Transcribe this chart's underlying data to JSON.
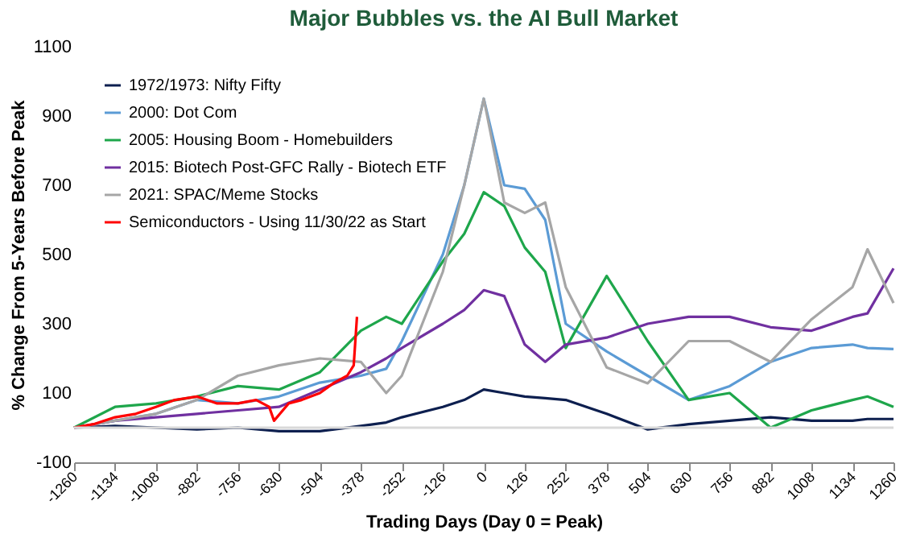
{
  "chart_data": {
    "type": "line",
    "title": "Major Bubbles vs. the AI Bull Market",
    "xlabel": "Trading Days (Day 0 = Peak)",
    "ylabel": "% Change From 5-Years Before Peak",
    "x": [
      -1260,
      -1134,
      -1008,
      -882,
      -756,
      -630,
      -504,
      -378,
      -300,
      -252,
      -126,
      -60,
      0,
      63,
      126,
      189,
      252,
      378,
      504,
      630,
      756,
      882,
      1008,
      1134,
      1180,
      1260
    ],
    "series": [
      {
        "name": "1972/1973: Nifty Fifty",
        "color": "#0d1f4f",
        "values": [
          0,
          5,
          0,
          -5,
          0,
          -10,
          -10,
          5,
          15,
          30,
          60,
          80,
          110,
          100,
          90,
          85,
          80,
          40,
          -5,
          10,
          20,
          30,
          20,
          20,
          25,
          25
        ]
      },
      {
        "name": "2000: Dot Com",
        "color": "#5b9bd5",
        "values": [
          0,
          20,
          40,
          80,
          70,
          90,
          130,
          150,
          170,
          250,
          500,
          700,
          950,
          700,
          690,
          600,
          300,
          220,
          150,
          80,
          120,
          190,
          230,
          240,
          230,
          227
        ]
      },
      {
        "name": "2005: Housing Boom - Homebuilders",
        "color": "#1ea64b",
        "values": [
          0,
          60,
          70,
          90,
          120,
          110,
          160,
          280,
          320,
          300,
          480,
          560,
          680,
          640,
          520,
          450,
          230,
          438,
          250,
          80,
          100,
          0,
          50,
          80,
          90,
          60
        ]
      },
      {
        "name": "2015: Biotech Post-GFC Rally - Biotech ETF",
        "color": "#7030a0",
        "values": [
          0,
          20,
          30,
          40,
          50,
          60,
          110,
          160,
          200,
          230,
          300,
          340,
          397,
          380,
          240,
          190,
          240,
          260,
          300,
          320,
          320,
          290,
          280,
          320,
          330,
          460
        ]
      },
      {
        "name": "2021: SPAC/Meme Stocks",
        "color": "#a6a6a6",
        "values": [
          0,
          20,
          40,
          80,
          150,
          180,
          200,
          190,
          100,
          150,
          450,
          700,
          950,
          650,
          620,
          650,
          406,
          174,
          128,
          250,
          250,
          190,
          313,
          406,
          515,
          360
        ]
      },
      {
        "name": "Semiconductors - Using 11/30/22 as Start",
        "color": "#ff0000",
        "x": [
          -1260,
          -1200,
          -1134,
          -1070,
          -1008,
          -950,
          -882,
          -820,
          -756,
          -700,
          -660,
          -645,
          -600,
          -560,
          -504,
          -460,
          -420,
          -400,
          -390
        ],
        "values": [
          0,
          10,
          30,
          40,
          60,
          80,
          90,
          70,
          70,
          80,
          60,
          20,
          70,
          80,
          100,
          130,
          150,
          180,
          320
        ]
      }
    ],
    "xlim": [
      -1260,
      1260
    ],
    "xticks": [
      -1260,
      -1134,
      -1008,
      -882,
      -756,
      -630,
      -504,
      -378,
      -252,
      -126,
      0,
      126,
      252,
      378,
      504,
      630,
      756,
      882,
      1008,
      1134,
      1260
    ],
    "ylim": [
      -100,
      1100
    ],
    "yticks": [
      -100,
      100,
      300,
      500,
      700,
      900,
      1100
    ],
    "ref_lines": [
      {
        "axis": "y",
        "value": 0,
        "label": null,
        "color": "#d9d9d9"
      }
    ],
    "grid": false,
    "legend": "top left",
    "marker": "none",
    "line_style": "solid"
  }
}
